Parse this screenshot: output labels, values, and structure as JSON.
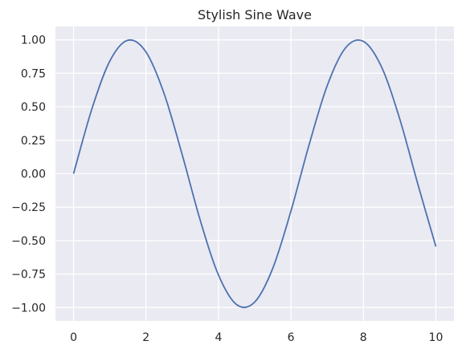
{
  "chart_data": {
    "type": "line",
    "title": "Stylish Sine Wave",
    "xlabel": "",
    "ylabel": "",
    "xlim": [
      -0.5,
      10.5
    ],
    "ylim": [
      -1.1,
      1.1
    ],
    "x_ticks": [
      0,
      2,
      4,
      6,
      8,
      10
    ],
    "x_tick_labels": [
      "0",
      "2",
      "4",
      "6",
      "8",
      "10"
    ],
    "y_ticks": [
      1.0,
      0.75,
      0.5,
      0.25,
      0.0,
      -0.25,
      -0.5,
      -0.75,
      -1.0
    ],
    "y_tick_labels": [
      "1.00",
      "0.75",
      "0.50",
      "0.25",
      "0.00",
      "−0.25",
      "−0.50",
      "−0.75",
      "−1.00"
    ],
    "grid": true,
    "legend": "none",
    "colors": {
      "background": "#eaeaf2",
      "grid": "#ffffff",
      "line": "#4c72b0"
    },
    "series": [
      {
        "x": [
          0,
          0.5,
          1,
          1.5,
          2,
          2.5,
          3,
          3.5,
          4,
          4.5,
          5,
          5.5,
          6,
          6.5,
          7,
          7.5,
          8,
          8.5,
          9,
          9.5,
          10
        ],
        "values": [
          0.0,
          0.479,
          0.841,
          0.997,
          0.909,
          0.598,
          0.141,
          -0.351,
          -0.757,
          -0.978,
          -0.959,
          -0.706,
          -0.279,
          0.215,
          0.657,
          0.938,
          0.989,
          0.798,
          0.412,
          -0.075,
          -0.544
        ]
      }
    ]
  }
}
